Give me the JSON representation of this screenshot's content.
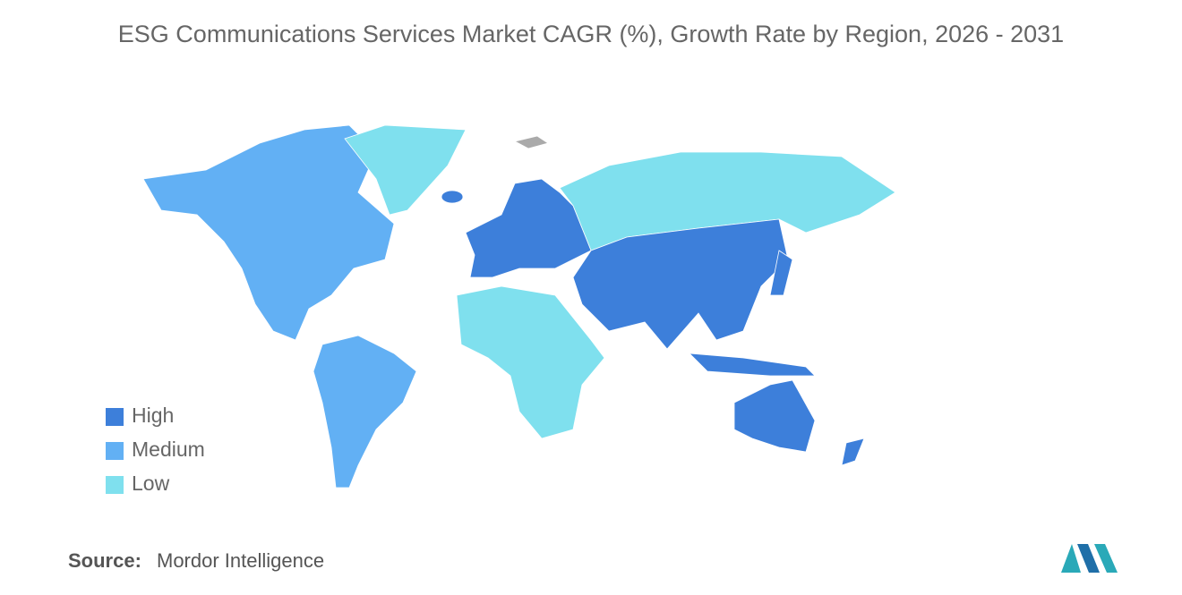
{
  "title": "ESG Communications Services Market CAGR (%), Growth Rate by Region, 2026 - 2031",
  "legend": {
    "items": [
      {
        "label": "High",
        "color": "#3d7fda"
      },
      {
        "label": "Medium",
        "color": "#62b0f4"
      },
      {
        "label": "Low",
        "color": "#7fe0ee"
      }
    ]
  },
  "source": {
    "label": "Source:",
    "text": "Mordor Intelligence"
  }
}
